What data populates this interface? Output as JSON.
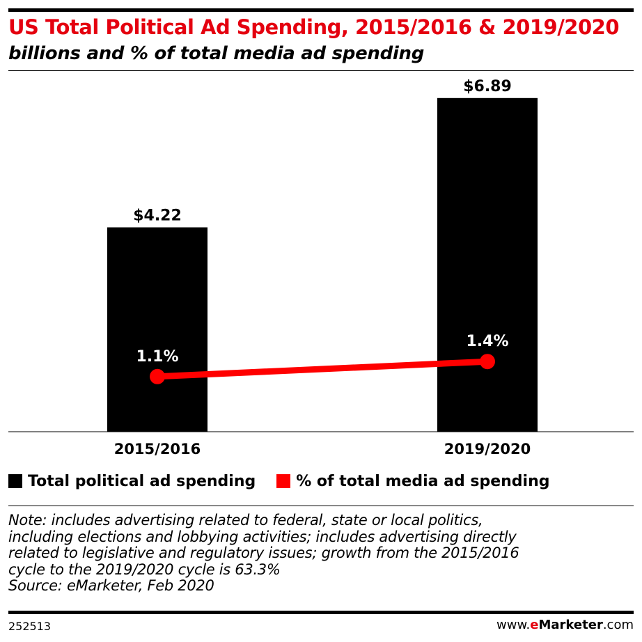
{
  "title": "US Total Political Ad Spending, 2015/2016 & 2019/2020",
  "subtitle": "billions and % of total media ad spending",
  "chart_data": {
    "type": "bar",
    "categories": [
      "2015/2016",
      "2019/2020"
    ],
    "series": [
      {
        "name": "Total political ad spending",
        "type": "bar",
        "color": "#000000",
        "values": [
          4.22,
          6.89
        ],
        "labels": [
          "$4.22",
          "$6.89"
        ]
      },
      {
        "name": "% of total media ad spending",
        "type": "line",
        "color": "#ff0000",
        "values": [
          1.1,
          1.4
        ],
        "labels": [
          "1.1%",
          "1.4%"
        ]
      }
    ],
    "grid": false,
    "legend": "bottom-left"
  },
  "note": {
    "lines": [
      "Note: includes advertising related to federal, state or local politics,",
      "including elections and lobbying activities; includes advertising directly",
      "related to legislative and regulatory issues; growth from the 2015/2016",
      "cycle to the 2019/2020 cycle is 63.3%",
      "Source: eMarketer, Feb 2020"
    ]
  },
  "footer": {
    "id": "252513",
    "brand_prefix": "www.",
    "brand_e": "e",
    "brand_name": "Marketer",
    "brand_suffix": ".com"
  }
}
